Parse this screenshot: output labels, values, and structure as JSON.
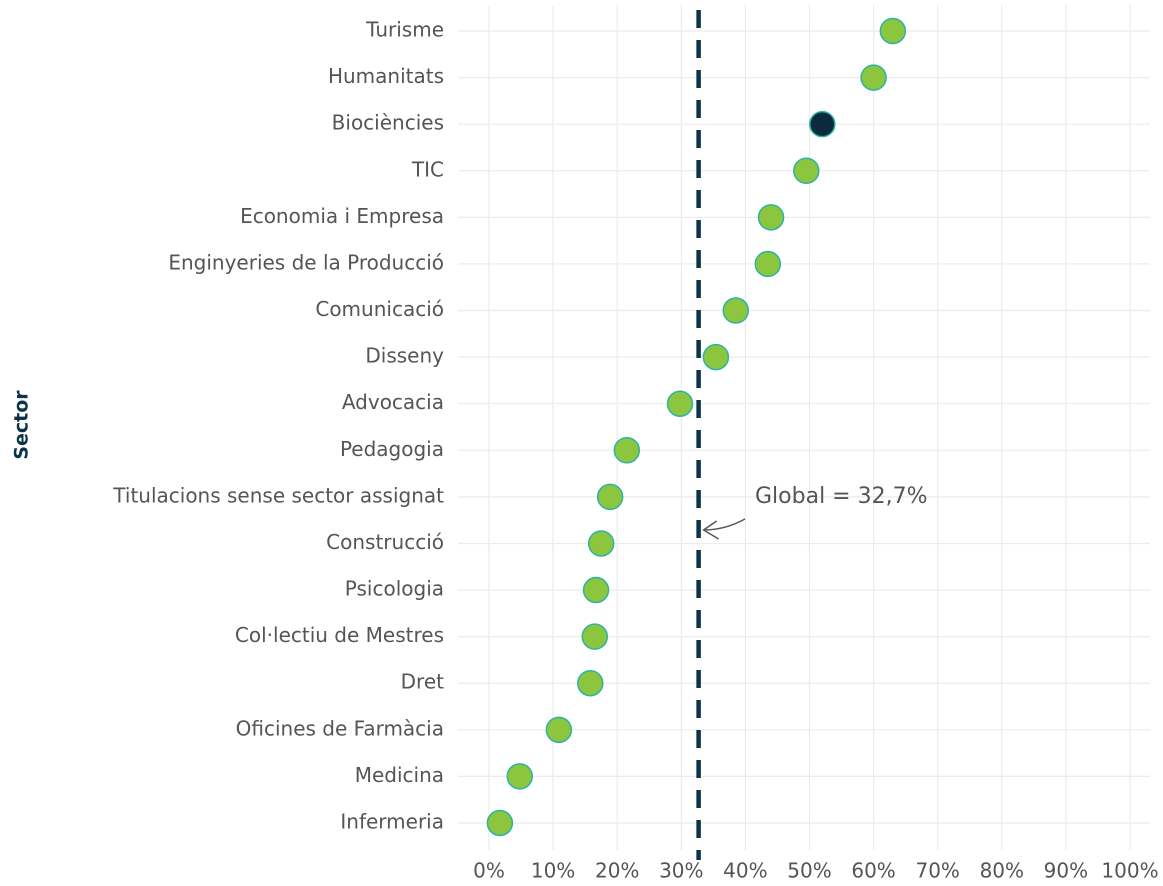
{
  "chart_data": {
    "type": "dot",
    "ylabel": "Sector",
    "categories": [
      "Turisme",
      "Humanitats",
      "Biociències",
      "TIC",
      "Economia i Empresa",
      "Enginyeries de la Producció",
      "Comunicació",
      "Disseny",
      "Advocacia",
      "Pedagogia",
      "Titulacions sense sector assignat",
      "Construcció",
      "Psicologia",
      "Col·lectiu de Mestres",
      "Dret",
      "Oficines de Farmàcia",
      "Medicina",
      "Infermeria"
    ],
    "values": [
      63.0,
      60.0,
      52.0,
      49.5,
      44.0,
      43.5,
      38.5,
      35.4,
      29.8,
      21.5,
      18.9,
      17.5,
      16.7,
      16.5,
      15.8,
      10.9,
      4.8,
      1.7
    ],
    "colors": [
      "#8cc63f",
      "#8cc63f",
      "#0b2a3c",
      "#8cc63f",
      "#8cc63f",
      "#8cc63f",
      "#8cc63f",
      "#8cc63f",
      "#8cc63f",
      "#8cc63f",
      "#8cc63f",
      "#8cc63f",
      "#8cc63f",
      "#8cc63f",
      "#8cc63f",
      "#8cc63f",
      "#8cc63f",
      "#8cc63f"
    ],
    "outline_color": "#2bb3a6",
    "xlim": [
      0,
      100
    ],
    "xticks": [
      {
        "value": 0,
        "label": "0%"
      },
      {
        "value": 10,
        "label": "10%"
      },
      {
        "value": 20,
        "label": "20%"
      },
      {
        "value": 30,
        "label": "30%"
      },
      {
        "value": 40,
        "label": "40%"
      },
      {
        "value": 50,
        "label": "50%"
      },
      {
        "value": 60,
        "label": "60%"
      },
      {
        "value": 70,
        "label": "70%"
      },
      {
        "value": 80,
        "label": "80%"
      },
      {
        "value": 90,
        "label": "90%"
      },
      {
        "value": 100,
        "label": "100%"
      }
    ],
    "grid": true,
    "reference_line": {
      "value": 32.7,
      "label": "Global = 32,7%",
      "color": "#0d3349"
    }
  }
}
